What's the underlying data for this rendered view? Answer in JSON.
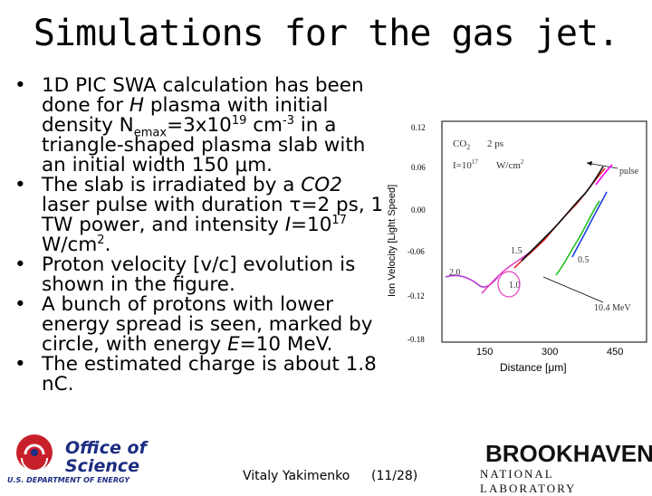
{
  "slide": {
    "title": "Simulations for the gas jet.",
    "bullets": [
      {
        "html": "1D PIC SWA calculation has been done for <i>H</i> plasma with initial density N<sub>emax</sub>=3x10<sup>19</sup> cm<sup>-3</sup> in a triangle-shaped plasma slab with an initial width 150 μm."
      },
      {
        "html": "The slab is irradiated by a <i>CO2</i> laser pulse with duration τ=2 ps, 1 TW power, and intensity <i>I</i>=10<sup>17</sup> W/cm<sup>2</sup>."
      },
      {
        "html": "Proton velocity [v/c] evolution is shown in the figure."
      },
      {
        "html": "A bunch of protons with lower energy spread is seen, marked by circle, with energy <i>E</i>=10 MeV."
      },
      {
        "html": "The estimated charge is about 1.8 nC."
      }
    ],
    "author": "Vitaly Yakimenko",
    "page": "(11/28)"
  },
  "figure": {
    "ylabel": "Ion Velocity [Light Speed]",
    "xlabel": "Distance [μm]",
    "yticks": [
      "0.12",
      "0.06",
      "0.00",
      "-0.06",
      "-0.12",
      "-0.18"
    ],
    "xticks": [
      "150",
      "300",
      "450"
    ],
    "annot_co2": "CO",
    "annot_co2_sub": "2",
    "annot_ps": "2 ps",
    "annot_i": "I=10",
    "annot_i_sup": "17",
    "annot_w": "W/cm",
    "annot_w_sup": "2",
    "annot_pulse": "pulse",
    "annot_15": "1.5",
    "annot_20": "2.0",
    "annot_10": "1.0",
    "annot_05": "0.5",
    "annot_mev": "10.4 MeV",
    "colors": {
      "purple": "#b03ad0",
      "pink": "#e040c0",
      "red": "#e02020",
      "green": "#20c020",
      "blue": "#2040e0",
      "black": "#111111",
      "magenta": "#ff00ff"
    }
  },
  "logos": {
    "ose_line1": "Office of",
    "ose_line2": "Science",
    "ose_line3": "U.S. DEPARTMENT OF ENERGY",
    "bnl_line1": "BROOKHAVEN",
    "bnl_line2": "NATIONAL LABORATORY"
  }
}
